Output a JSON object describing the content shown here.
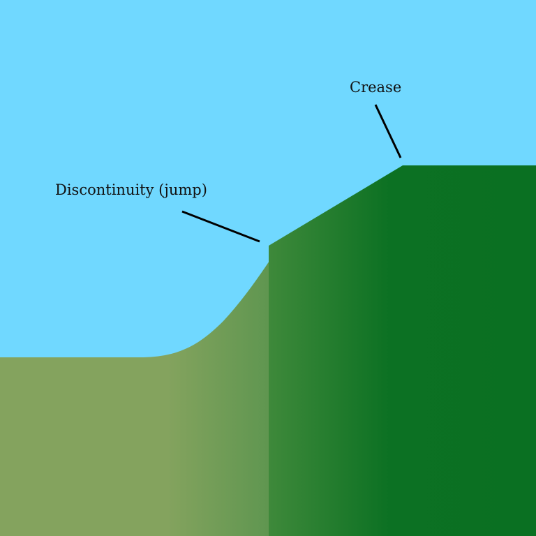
{
  "labels": {
    "crease": "Crease",
    "discontinuity": "Discontinuity (jump)"
  },
  "colors": {
    "sky": "#70d8ff",
    "terrain_left": "#84a35e",
    "terrain_right_light": "#3e893a",
    "terrain_right_dark": "#0a7022",
    "pointer": "#000000",
    "text": "#111111"
  }
}
